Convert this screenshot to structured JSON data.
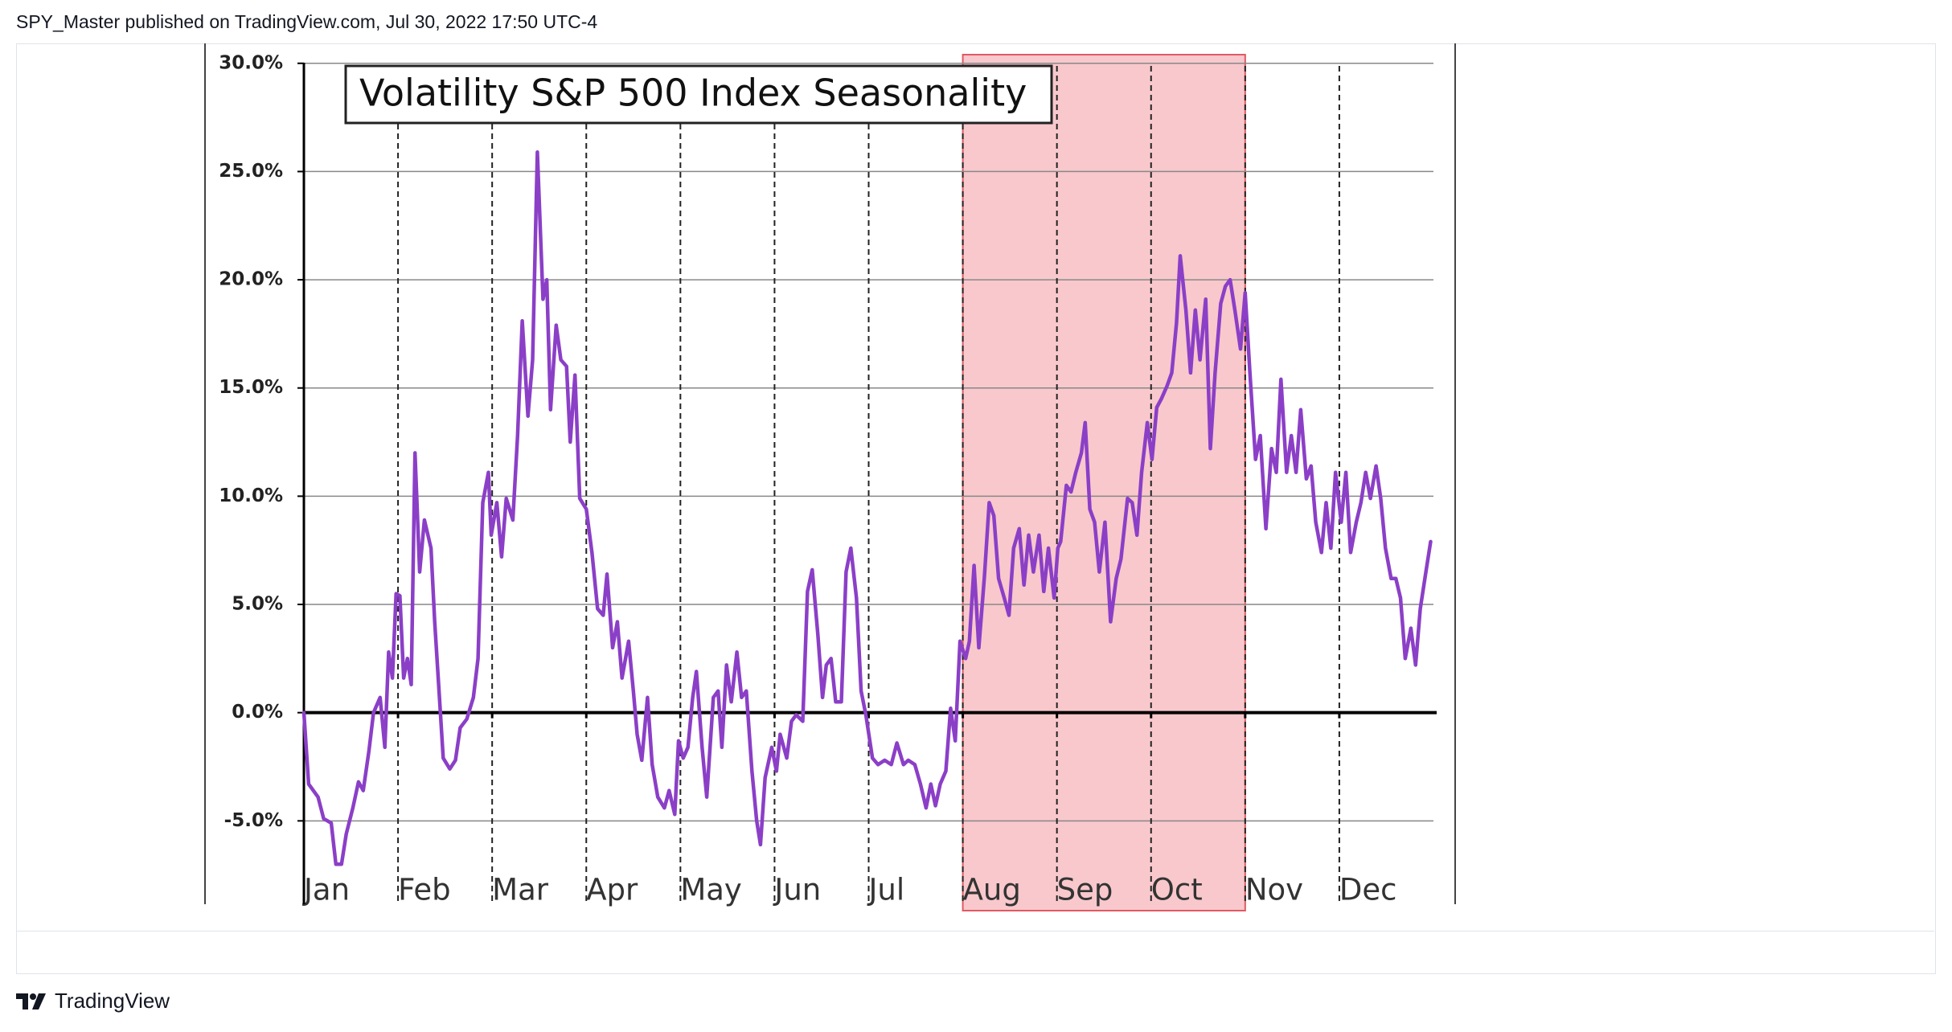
{
  "header": {
    "byline": "SPY_Master published on TradingView.com, Jul 30, 2022 17:50 UTC-4"
  },
  "footer": {
    "brand": "TradingView"
  },
  "chart_data": {
    "type": "line",
    "title": "Volatility S&P 500 Index Seasonality",
    "color": "#8b3fc7",
    "grid": true,
    "highlight": {
      "range": [
        7,
        10
      ],
      "color": "#f8c8cc",
      "border": "#e05a63"
    },
    "xlim": [
      0,
      12
    ],
    "ylim": [
      -8.85,
      30.4
    ],
    "xticks": [
      {
        "value": 0,
        "label": "Jan"
      },
      {
        "value": 1,
        "label": "Feb"
      },
      {
        "value": 2,
        "label": "Mar"
      },
      {
        "value": 3,
        "label": "Apr"
      },
      {
        "value": 4,
        "label": "May"
      },
      {
        "value": 5,
        "label": "Jun"
      },
      {
        "value": 6,
        "label": "Jul"
      },
      {
        "value": 7,
        "label": "Aug"
      },
      {
        "value": 8,
        "label": "Sep"
      },
      {
        "value": 9,
        "label": "Oct"
      },
      {
        "value": 10,
        "label": "Nov"
      },
      {
        "value": 11,
        "label": "Dec"
      }
    ],
    "yticks": [
      {
        "value": -5,
        "label": "-5.0%"
      },
      {
        "value": 0,
        "label": "0.0%"
      },
      {
        "value": 5,
        "label": "5.0%"
      },
      {
        "value": 10,
        "label": "10.0%"
      },
      {
        "value": 15,
        "label": "15.0%"
      },
      {
        "value": 20,
        "label": "20.0%"
      },
      {
        "value": 25,
        "label": "25.0%"
      },
      {
        "value": 30,
        "label": "30.0%"
      }
    ],
    "x": [
      0,
      0.05,
      0.15,
      0.21,
      0.29,
      0.34,
      0.4,
      0.45,
      0.52,
      0.58,
      0.63,
      0.69,
      0.74,
      0.81,
      0.86,
      0.9,
      0.94,
      0.98,
      1.02,
      1.06,
      1.1,
      1.14,
      1.18,
      1.23,
      1.28,
      1.35,
      1.39,
      1.44,
      1.48,
      1.55,
      1.61,
      1.66,
      1.73,
      1.8,
      1.85,
      1.9,
      1.96,
      1.99,
      2.05,
      2.1,
      2.15,
      2.22,
      2.27,
      2.32,
      2.38,
      2.43,
      2.48,
      2.54,
      2.58,
      2.62,
      2.68,
      2.73,
      2.79,
      2.83,
      2.88,
      2.93,
      3.0,
      3.06,
      3.12,
      3.18,
      3.22,
      3.28,
      3.33,
      3.38,
      3.45,
      3.5,
      3.54,
      3.59,
      3.65,
      3.7,
      3.76,
      3.83,
      3.88,
      3.94,
      3.98,
      4.03,
      4.08,
      4.13,
      4.17,
      4.23,
      4.28,
      4.35,
      4.4,
      4.44,
      4.49,
      4.54,
      4.6,
      4.65,
      4.7,
      4.76,
      4.81,
      4.85,
      4.9,
      4.97,
      5.02,
      5.06,
      5.13,
      5.18,
      5.23,
      5.3,
      5.35,
      5.4,
      5.46,
      5.51,
      5.55,
      5.6,
      5.65,
      5.71,
      5.76,
      5.81,
      5.87,
      5.92,
      5.97,
      6.04,
      6.1,
      6.17,
      6.24,
      6.3,
      6.37,
      6.42,
      6.49,
      6.55,
      6.61,
      6.66,
      6.71,
      6.76,
      6.82,
      6.87,
      6.92,
      6.97,
      7.03,
      7.07,
      7.12,
      7.17,
      7.23,
      7.28,
      7.33,
      7.38,
      7.44,
      7.49,
      7.54,
      7.6,
      7.65,
      7.7,
      7.75,
      7.81,
      7.86,
      7.91,
      7.97,
      8.01,
      8.04,
      8.1,
      8.15,
      8.2,
      8.26,
      8.3,
      8.35,
      8.4,
      8.45,
      8.51,
      8.57,
      8.63,
      8.68,
      8.75,
      8.8,
      8.85,
      8.9,
      8.96,
      9.01,
      9.06,
      9.11,
      9.17,
      9.22,
      9.27,
      9.31,
      9.37,
      9.42,
      9.47,
      9.52,
      9.58,
      9.63,
      9.68,
      9.74,
      9.79,
      9.84,
      9.89,
      9.95,
      10.0,
      10.05,
      10.11,
      10.16,
      10.22,
      10.28,
      10.33,
      10.38,
      10.44,
      10.49,
      10.54,
      10.59,
      10.65,
      10.7,
      10.75,
      10.81,
      10.86,
      10.91,
      10.96,
      11.02,
      11.07,
      11.12,
      11.18,
      11.23,
      11.28,
      11.33,
      11.39,
      11.44,
      11.49,
      11.55,
      11.6,
      11.65,
      11.7,
      11.76,
      11.81,
      11.86,
      11.92,
      11.97
    ],
    "values": [
      0,
      -3.3,
      -3.9,
      -4.9,
      -5.1,
      -7,
      -7,
      -5.6,
      -4.4,
      -3.2,
      -3.6,
      -1.8,
      0,
      0.7,
      -1.6,
      2.8,
      1.6,
      5.5,
      5.4,
      1.6,
      2.5,
      1.3,
      12,
      6.5,
      8.9,
      7.6,
      4.2,
      0.7,
      -2.1,
      -2.6,
      -2.2,
      -0.7,
      -0.3,
      0.7,
      2.5,
      9.7,
      11.1,
      8.2,
      9.7,
      7.2,
      9.9,
      8.9,
      12.8,
      18.1,
      13.7,
      16.3,
      25.9,
      19.1,
      20,
      14,
      17.9,
      16.3,
      16,
      12.5,
      15.6,
      9.9,
      9.4,
      7.4,
      4.8,
      4.5,
      6.4,
      3,
      4.2,
      1.6,
      3.3,
      1,
      -1,
      -2.2,
      0.7,
      -2.4,
      -3.9,
      -4.4,
      -3.6,
      -4.7,
      -1.3,
      -2.1,
      -1.6,
      0.7,
      1.9,
      -1.6,
      -3.9,
      0.7,
      1,
      -1.6,
      2.2,
      0.5,
      2.8,
      0.7,
      1,
      -2.7,
      -5,
      -6.1,
      -3,
      -1.6,
      -2.7,
      -1,
      -2.1,
      -0.4,
      -0.1,
      -0.4,
      5.6,
      6.6,
      3.6,
      0.7,
      2.2,
      2.5,
      0.5,
      0.5,
      6.5,
      7.6,
      5.3,
      1,
      -0.1,
      -2.1,
      -2.4,
      -2.2,
      -2.4,
      -1.4,
      -2.4,
      -2.2,
      -2.4,
      -3.3,
      -4.4,
      -3.3,
      -4.3,
      -3.3,
      -2.7,
      0.2,
      -1.3,
      3.3,
      2.5,
      3.3,
      6.8,
      3,
      6.3,
      9.7,
      9.1,
      6.2,
      5.3,
      4.5,
      7.6,
      8.5,
      5.9,
      8.2,
      6.5,
      8.2,
      5.6,
      7.6,
      5.3,
      7.6,
      7.9,
      10.5,
      10.2,
      11.1,
      12,
      13.4,
      9.4,
      8.8,
      6.5,
      8.8,
      4.2,
      6.2,
      7.1,
      9.9,
      9.7,
      8.2,
      11.1,
      13.4,
      11.7,
      14.1,
      14.5,
      15.1,
      15.7,
      18,
      21.1,
      18.6,
      15.7,
      18.6,
      16.3,
      19.1,
      12.2,
      15.7,
      18.9,
      19.7,
      20,
      18.6,
      16.8,
      19.4,
      15.7,
      11.7,
      12.8,
      8.5,
      12.2,
      11.1,
      15.4,
      11.1,
      12.8,
      11.1,
      14,
      10.8,
      11.4,
      8.8,
      7.4,
      9.7,
      7.6,
      11.1,
      8.8,
      11.1,
      7.4,
      8.8,
      9.7,
      11.1,
      9.9,
      11.4,
      9.9,
      7.6,
      6.2,
      6.2,
      5.3,
      2.5,
      3.9,
      2.2,
      4.8,
      6.5,
      7.9
    ]
  }
}
